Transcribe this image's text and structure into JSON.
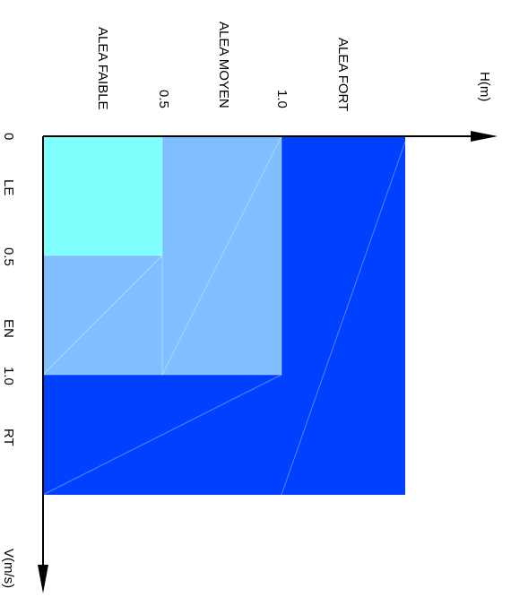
{
  "diagram": {
    "axis_h_label": "H(m)",
    "axis_v_label": "V(m/s)",
    "zones": [
      {
        "name": "ALEA FAIBLE",
        "color": "#80ffff"
      },
      {
        "name": "ALEA MOYEN",
        "color": "#80bfff"
      },
      {
        "name": "ALEA FORT",
        "color": "#0040ff"
      }
    ],
    "h_ticks": [
      "0.5",
      "1.0"
    ],
    "v_ticks": [
      "0",
      "0.5",
      "1.0"
    ],
    "left_cut_labels": [
      "LE",
      "EN",
      "RT"
    ]
  }
}
